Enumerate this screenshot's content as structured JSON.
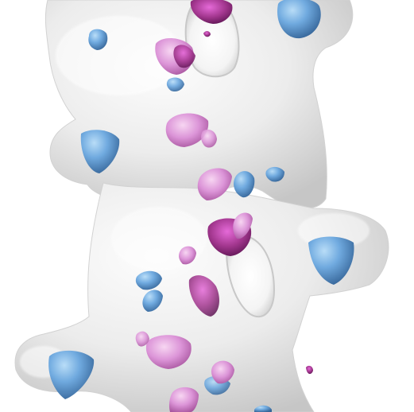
{
  "scene": {
    "subject": "molecular-surface-render",
    "colors": {
      "background": "#ffffff",
      "surface_light": "#fbfbfb",
      "surface_mid": "#e9e9e9",
      "surface_dark": "#bdbdbd",
      "blue_light": "#a9d2f4",
      "blue_mid": "#5f9fdc",
      "blue_dark": "#2b5e94",
      "magenta_light": "#f4c9ef",
      "magenta_mid": "#d58ad2",
      "magenta_dark": "#8c2b7f"
    }
  }
}
